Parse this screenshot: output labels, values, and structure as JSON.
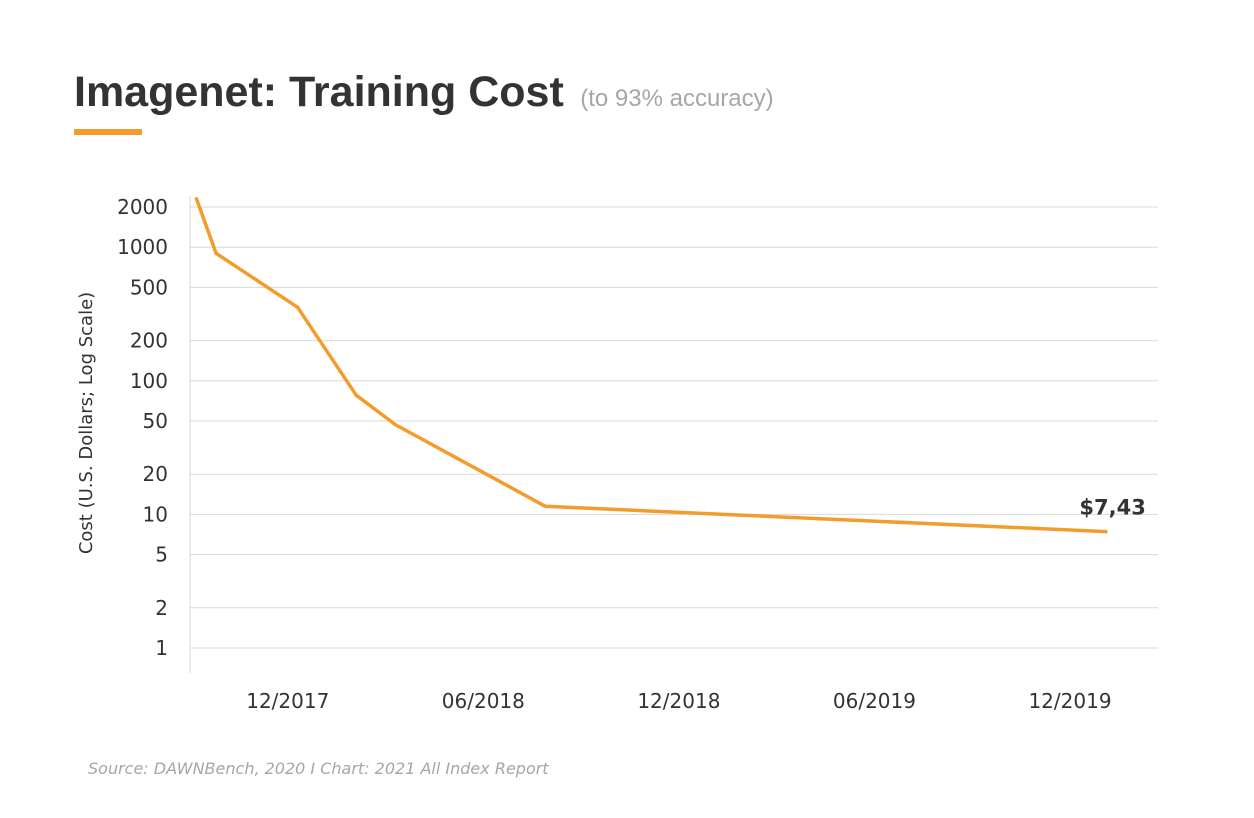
{
  "colors": {
    "accent": "#f39c2c",
    "text": "#333333",
    "muted": "#a6a6a6",
    "grid": "#d9d9d9"
  },
  "chart_data": {
    "type": "line",
    "title": "Imagenet: Training Cost",
    "subtitle": "(to 93% accuracy)",
    "xlabel": "",
    "ylabel": "Cost (U.S. Dollars; Log Scale)",
    "yscale": "log",
    "ylim": [
      1,
      2300
    ],
    "yticks": [
      2000,
      1000,
      500,
      200,
      100,
      50,
      20,
      10,
      5,
      2,
      1
    ],
    "ytick_labels": [
      "2000",
      "1000",
      "500",
      "200",
      "100",
      "50",
      "20",
      "10",
      "5",
      "2",
      "1"
    ],
    "x_unit": "months since 12/2017",
    "xlim": [
      -3.0,
      26.7
    ],
    "xticks": [
      0,
      6,
      12,
      18,
      24
    ],
    "xtick_labels": [
      "12/2017",
      "06/2018",
      "12/2018",
      "06/2019",
      "12/2019"
    ],
    "grid": true,
    "series": [
      {
        "name": "Training Cost",
        "color": "#f39c2c",
        "x": [
          -2.8,
          -2.2,
          0.3,
          2.1,
          3.3,
          7.9,
          25.1
        ],
        "y": [
          2300,
          900,
          355,
          78,
          47,
          11.5,
          7.43
        ]
      }
    ],
    "annotations": [
      {
        "text": "$7,43",
        "series": 0,
        "point": 6
      }
    ],
    "source": "Source: DAWNBench, 2020 I Chart: 2021 All Index Report"
  }
}
